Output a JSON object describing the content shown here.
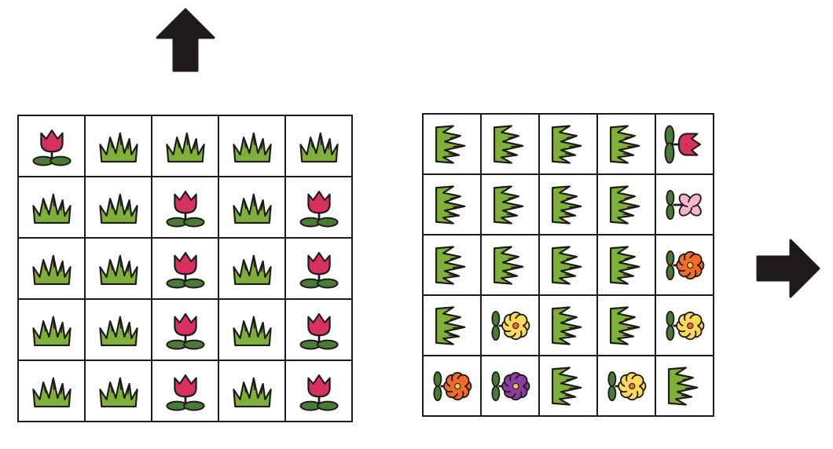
{
  "arrows": {
    "top": "arrow-up-icon",
    "right": "arrow-right-icon"
  },
  "colors": {
    "ink": "#1e1b1a",
    "grass": "#7fb13a",
    "tulip": "#d6315f",
    "leaf": "#4a7a35",
    "pink": "#f5b7d0",
    "orange": "#f26b2b",
    "yellow": "#fbd95a",
    "purple": "#8a3fa0",
    "center": "#f6c945"
  },
  "left_grid": {
    "orientation": "up",
    "rows": [
      [
        "tulip",
        "grass",
        "grass",
        "grass",
        "grass"
      ],
      [
        "grass",
        "grass",
        "tulip",
        "grass",
        "tulip"
      ],
      [
        "grass",
        "grass",
        "tulip",
        "grass",
        "tulip"
      ],
      [
        "grass",
        "grass",
        "tulip",
        "grass",
        "tulip"
      ],
      [
        "grass",
        "grass",
        "tulip",
        "grass",
        "tulip"
      ]
    ]
  },
  "right_grid": {
    "orientation": "right",
    "rows": [
      [
        "grass",
        "grass",
        "grass",
        "grass",
        "tulip"
      ],
      [
        "grass",
        "grass",
        "grass",
        "grass",
        "pink-flower"
      ],
      [
        "grass",
        "grass",
        "grass",
        "grass",
        "orange-flower"
      ],
      [
        "grass",
        "yellow-flower",
        "grass",
        "grass",
        "yellow-flower"
      ],
      [
        "orange-flower",
        "purple-flower",
        "grass",
        "yellow-flower",
        "grass"
      ]
    ]
  }
}
